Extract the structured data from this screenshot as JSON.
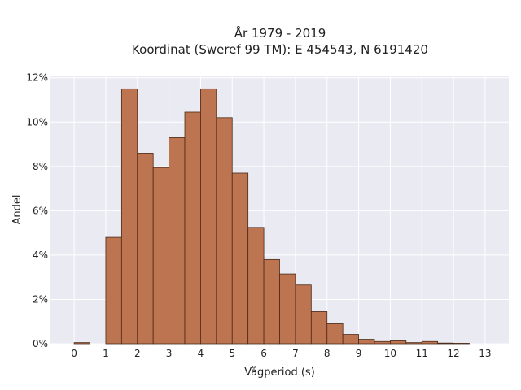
{
  "chart_data": {
    "type": "bar",
    "title_lines": [
      "År 1979 - 2019",
      "Koordinat (Sweref 99 TM): E 454543, N 6191420"
    ],
    "xlabel": "Vågperiod (s)",
    "ylabel": "Andel",
    "x_ticks": [
      0,
      1,
      2,
      3,
      4,
      5,
      6,
      7,
      8,
      9,
      10,
      11,
      12,
      13
    ],
    "y_ticks": [
      0,
      2,
      4,
      6,
      8,
      10,
      12
    ],
    "y_tick_labels": [
      "0%",
      "2%",
      "4%",
      "6%",
      "8%",
      "10%",
      "12%"
    ],
    "xlim": [
      -0.75,
      13.75
    ],
    "ylim": [
      0,
      12.1
    ],
    "bin_width": 0.5,
    "bins": [
      {
        "start": 0.0,
        "value": 0.05
      },
      {
        "start": 0.5,
        "value": 0.0
      },
      {
        "start": 1.0,
        "value": 4.8
      },
      {
        "start": 1.5,
        "value": 11.5
      },
      {
        "start": 2.0,
        "value": 8.6
      },
      {
        "start": 2.5,
        "value": 7.95
      },
      {
        "start": 3.0,
        "value": 9.3
      },
      {
        "start": 3.5,
        "value": 10.45
      },
      {
        "start": 4.0,
        "value": 11.5
      },
      {
        "start": 4.5,
        "value": 10.2
      },
      {
        "start": 5.0,
        "value": 7.7
      },
      {
        "start": 5.5,
        "value": 5.25
      },
      {
        "start": 6.0,
        "value": 3.8
      },
      {
        "start": 6.5,
        "value": 3.15
      },
      {
        "start": 7.0,
        "value": 2.65
      },
      {
        "start": 7.5,
        "value": 1.45
      },
      {
        "start": 8.0,
        "value": 0.9
      },
      {
        "start": 8.5,
        "value": 0.42
      },
      {
        "start": 9.0,
        "value": 0.2
      },
      {
        "start": 9.5,
        "value": 0.1
      },
      {
        "start": 10.0,
        "value": 0.13
      },
      {
        "start": 10.5,
        "value": 0.05
      },
      {
        "start": 11.0,
        "value": 0.1
      },
      {
        "start": 11.5,
        "value": 0.03
      },
      {
        "start": 12.0,
        "value": 0.02
      }
    ],
    "grid": true,
    "colors": {
      "bar": "#bd7450",
      "bar_edge": "#4a2a1a",
      "plot_background": "#eaeaf2",
      "grid": "#ffffff"
    }
  }
}
